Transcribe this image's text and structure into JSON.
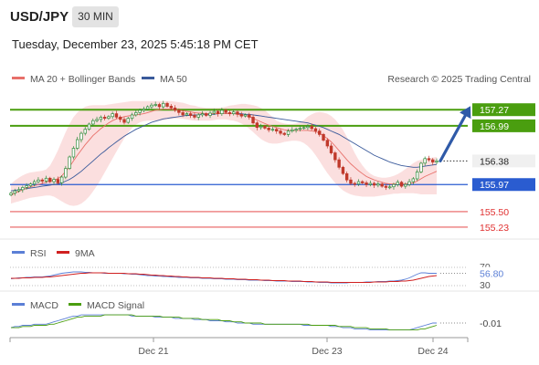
{
  "header": {
    "symbol": "USD/JPY",
    "timeframe": "30 MIN",
    "datetime": "Tuesday, December 23, 2025 5:45:18 PM CET"
  },
  "legend": {
    "ma20": "MA 20 + Bollinger Bands",
    "ma50": "MA 50",
    "credit": "Research © 2025 Trading Central"
  },
  "colors": {
    "ma20": "#e8706a",
    "ma50": "#3a5a9b",
    "resistance": "#4a9e0f",
    "support": "#2a5cd0",
    "target": "#e03030",
    "bollinger_fill": "#fbdcdc",
    "candle_up": "#2e8b3a",
    "candle_down": "#c0392b",
    "arrow": "#2f5aa8",
    "rsi": "#5b7fd6",
    "rsi_ma": "#d02020",
    "macd": "#5b7fd6",
    "macd_signal": "#4a9e0f"
  },
  "chart_data": [
    {
      "type": "candlestick",
      "ylim": [
        155.15,
        157.4
      ],
      "x_ticks": [
        "Dec 21",
        "Dec 23",
        "Dec 24"
      ],
      "last_price": 156.38,
      "levels": [
        {
          "value": 157.27,
          "label": "157.27",
          "kind": "resistance"
        },
        {
          "value": 156.99,
          "label": "156.99",
          "kind": "resistance"
        },
        {
          "value": 155.97,
          "label": "155.97",
          "kind": "support"
        },
        {
          "value": 155.5,
          "label": "155.50",
          "kind": "target"
        },
        {
          "value": 155.23,
          "label": "155.23",
          "kind": "target"
        }
      ],
      "close": [
        155.82,
        155.86,
        155.88,
        155.92,
        155.95,
        155.98,
        156.02,
        156.05,
        156.03,
        156.08,
        156.02,
        156.06,
        156.0,
        156.1,
        156.25,
        156.45,
        156.6,
        156.75,
        156.86,
        156.93,
        157.02,
        157.08,
        157.1,
        157.14,
        157.12,
        157.15,
        157.2,
        157.14,
        157.1,
        157.05,
        157.12,
        157.18,
        157.22,
        157.26,
        157.28,
        157.32,
        157.35,
        157.36,
        157.32,
        157.38,
        157.33,
        157.3,
        157.26,
        157.22,
        157.18,
        157.2,
        157.17,
        157.14,
        157.18,
        157.2,
        157.17,
        157.21,
        157.24,
        157.2,
        157.26,
        157.22,
        157.2,
        157.23,
        157.19,
        157.16,
        157.18,
        157.14,
        157.04,
        156.96,
        156.98,
        156.95,
        156.92,
        156.93,
        156.9,
        156.86,
        156.84,
        156.9,
        156.92,
        156.93,
        156.95,
        156.96,
        156.98,
        156.94,
        156.9,
        156.84,
        156.74,
        156.64,
        156.52,
        156.4,
        156.27,
        156.16,
        156.05,
        155.99,
        155.98,
        156.02,
        156.0,
        155.97,
        155.99,
        155.96,
        155.98,
        155.94,
        155.92,
        155.93,
        155.97,
        156.01,
        155.94,
        155.97,
        156.02,
        156.07,
        156.19,
        156.34,
        156.42,
        156.4,
        156.36,
        156.38
      ],
      "ma20": [
        155.78,
        155.82,
        155.85,
        155.88,
        155.91,
        155.93,
        155.95,
        155.97,
        155.99,
        156.01,
        156.03,
        156.05,
        156.07,
        156.12,
        156.2,
        156.28,
        156.38,
        156.48,
        156.57,
        156.66,
        156.74,
        156.82,
        156.88,
        156.94,
        156.99,
        157.04,
        157.08,
        157.11,
        157.13,
        157.15,
        157.16,
        157.17,
        157.18,
        157.19,
        157.2,
        157.22,
        157.24,
        157.26,
        157.27,
        157.28,
        157.28,
        157.28,
        157.27,
        157.26,
        157.25,
        157.24,
        157.23,
        157.22,
        157.21,
        157.21,
        157.2,
        157.2,
        157.2,
        157.2,
        157.2,
        157.2,
        157.2,
        157.2,
        157.19,
        157.18,
        157.17,
        157.15,
        157.12,
        157.09,
        157.06,
        157.03,
        157.0,
        156.98,
        156.96,
        156.94,
        156.92,
        156.91,
        156.91,
        156.91,
        156.91,
        156.91,
        156.91,
        156.9,
        156.89,
        156.86,
        156.82,
        156.77,
        156.71,
        156.64,
        156.56,
        156.48,
        156.4,
        156.33,
        156.27,
        156.21,
        156.16,
        156.11,
        156.08,
        156.05,
        156.03,
        156.01,
        155.99,
        155.98,
        155.98,
        155.98,
        155.98,
        155.98,
        155.99,
        156.0,
        156.03,
        156.07,
        156.11,
        156.14,
        156.17,
        156.2
      ],
      "ma50": [
        155.86,
        155.87,
        155.88,
        155.89,
        155.9,
        155.91,
        155.92,
        155.93,
        155.94,
        155.95,
        155.96,
        155.97,
        155.98,
        156.0,
        156.03,
        156.06,
        156.1,
        156.15,
        156.2,
        156.26,
        156.32,
        156.38,
        156.44,
        156.5,
        156.55,
        156.61,
        156.66,
        156.71,
        156.76,
        156.81,
        156.85,
        156.89,
        156.93,
        156.96,
        156.99,
        157.02,
        157.05,
        157.07,
        157.09,
        157.11,
        157.12,
        157.13,
        157.14,
        157.15,
        157.16,
        157.17,
        157.17,
        157.18,
        157.18,
        157.19,
        157.19,
        157.19,
        157.19,
        157.2,
        157.2,
        157.2,
        157.2,
        157.2,
        157.2,
        157.2,
        157.19,
        157.19,
        157.18,
        157.17,
        157.16,
        157.15,
        157.14,
        157.13,
        157.12,
        157.11,
        157.1,
        157.09,
        157.08,
        157.07,
        157.06,
        157.05,
        157.04,
        157.02,
        157.0,
        156.98,
        156.96,
        156.93,
        156.9,
        156.87,
        156.84,
        156.8,
        156.76,
        156.72,
        156.68,
        156.64,
        156.6,
        156.56,
        156.52,
        156.48,
        156.45,
        156.42,
        156.39,
        156.36,
        156.34,
        156.32,
        156.3,
        156.29,
        156.28,
        156.27,
        156.27,
        156.28,
        156.29,
        156.3,
        156.31,
        156.32
      ],
      "bb_upper": [
        155.98,
        156.04,
        156.09,
        156.13,
        156.16,
        156.18,
        156.19,
        156.2,
        156.21,
        156.23,
        156.3,
        156.42,
        156.56,
        156.72,
        156.88,
        157.02,
        157.14,
        157.22,
        157.28,
        157.32,
        157.34,
        157.35,
        157.35,
        157.35,
        157.35,
        157.36,
        157.37,
        157.38,
        157.39,
        157.4,
        157.41,
        157.42,
        157.42,
        157.42,
        157.42,
        157.42,
        157.42,
        157.42,
        157.42,
        157.42,
        157.42,
        157.42,
        157.41,
        157.4,
        157.39,
        157.37,
        157.35,
        157.34,
        157.32,
        157.31,
        157.3,
        157.3,
        157.3,
        157.3,
        157.31,
        157.32,
        157.34,
        157.35,
        157.36,
        157.37,
        157.37,
        157.36,
        157.35,
        157.33,
        157.3,
        157.26,
        157.2,
        157.14,
        157.08,
        157.05,
        157.03,
        157.02,
        157.02,
        157.03,
        157.05,
        157.09,
        157.15,
        157.19,
        157.22,
        157.23,
        157.22,
        157.2,
        157.16,
        157.1,
        157.02,
        156.92,
        156.8,
        156.66,
        156.52,
        156.4,
        156.3,
        156.22,
        156.16,
        156.12,
        156.1,
        156.09,
        156.09,
        156.1,
        156.12,
        156.15,
        156.19,
        156.24,
        156.29,
        156.34,
        156.38,
        156.4,
        156.42,
        156.43,
        156.44,
        156.45
      ],
      "bb_lower": [
        155.64,
        155.66,
        155.68,
        155.7,
        155.72,
        155.74,
        155.75,
        155.76,
        155.77,
        155.78,
        155.78,
        155.76,
        155.72,
        155.68,
        155.64,
        155.61,
        155.6,
        155.61,
        155.64,
        155.69,
        155.76,
        155.85,
        155.95,
        156.06,
        156.18,
        156.3,
        156.42,
        156.54,
        156.66,
        156.77,
        156.87,
        156.95,
        157.01,
        157.05,
        157.07,
        157.08,
        157.08,
        157.08,
        157.08,
        157.09,
        157.1,
        157.11,
        157.12,
        157.12,
        157.11,
        157.1,
        157.09,
        157.08,
        157.08,
        157.08,
        157.08,
        157.08,
        157.09,
        157.1,
        157.1,
        157.1,
        157.09,
        157.08,
        157.06,
        157.03,
        156.99,
        156.94,
        156.88,
        156.82,
        156.76,
        156.72,
        156.69,
        156.68,
        156.68,
        156.69,
        156.71,
        156.72,
        156.73,
        156.73,
        156.72,
        156.69,
        156.64,
        156.57,
        156.48,
        156.38,
        156.27,
        156.17,
        156.08,
        156.0,
        155.93,
        155.87,
        155.83,
        155.8,
        155.78,
        155.77,
        155.76,
        155.76,
        155.76,
        155.76,
        155.77,
        155.78,
        155.79,
        155.8,
        155.81,
        155.81,
        155.82,
        155.82,
        155.82,
        155.82,
        155.81,
        155.8,
        155.8,
        155.8,
        155.8,
        155.8
      ]
    },
    {
      "type": "line",
      "name_series": "RSI",
      "value_label": "56.80",
      "value": 56.8,
      "levels": [
        70,
        30
      ],
      "level_labels": [
        "70",
        "30"
      ],
      "ylim": [
        20,
        80
      ],
      "series": [
        {
          "name": "RSI",
          "values": [
            45,
            46,
            47,
            47,
            48,
            48,
            49,
            49,
            49,
            50,
            51,
            53,
            55,
            57,
            58,
            59,
            60,
            60,
            60,
            59,
            59,
            58,
            58,
            58,
            57,
            57,
            57,
            57,
            57,
            56,
            56,
            55,
            55,
            54,
            53,
            52,
            52,
            51,
            51,
            50,
            50,
            49,
            49,
            48,
            48,
            48,
            47,
            47,
            47,
            46,
            46,
            46,
            45,
            45,
            45,
            44,
            44,
            44,
            43,
            43,
            43,
            42,
            42,
            42,
            42,
            41,
            41,
            41,
            40,
            40,
            40,
            40,
            39,
            39,
            39,
            39,
            38,
            38,
            38,
            37,
            37,
            37,
            36,
            36,
            36,
            36,
            36,
            37,
            37,
            37,
            37,
            38,
            38,
            38,
            39,
            39,
            39,
            40,
            40,
            41,
            42,
            44,
            47,
            51,
            55,
            58,
            58,
            57,
            57,
            57
          ]
        },
        {
          "name": "9MA",
          "values": [
            46,
            46,
            46,
            47,
            47,
            47,
            48,
            48,
            48,
            49,
            49,
            50,
            51,
            52,
            53,
            54,
            55,
            56,
            57,
            57,
            58,
            58,
            58,
            58,
            58,
            57,
            57,
            57,
            57,
            57,
            56,
            56,
            56,
            55,
            55,
            54,
            53,
            53,
            52,
            52,
            51,
            51,
            50,
            50,
            49,
            49,
            48,
            48,
            48,
            47,
            47,
            47,
            46,
            46,
            46,
            45,
            45,
            45,
            44,
            44,
            44,
            43,
            43,
            43,
            42,
            42,
            42,
            41,
            41,
            41,
            41,
            40,
            40,
            40,
            40,
            39,
            39,
            39,
            38,
            38,
            38,
            38,
            37,
            37,
            37,
            37,
            37,
            37,
            37,
            37,
            37,
            37,
            37,
            38,
            38,
            38,
            38,
            39,
            39,
            39,
            40,
            40,
            41,
            42,
            44,
            46,
            48,
            50,
            51,
            52
          ]
        }
      ]
    },
    {
      "type": "line",
      "value_label": "-0.01",
      "value": -0.01,
      "ylim": [
        -0.12,
        0.1
      ],
      "series": [
        {
          "name": "MACD",
          "values": [
            -0.05,
            -0.04,
            -0.04,
            -0.03,
            -0.03,
            -0.03,
            -0.02,
            -0.02,
            -0.02,
            -0.02,
            -0.01,
            0.0,
            0.01,
            0.02,
            0.03,
            0.04,
            0.05,
            0.05,
            0.06,
            0.06,
            0.06,
            0.06,
            0.06,
            0.06,
            0.06,
            0.06,
            0.06,
            0.06,
            0.06,
            0.06,
            0.06,
            0.05,
            0.05,
            0.05,
            0.05,
            0.05,
            0.05,
            0.04,
            0.04,
            0.04,
            0.04,
            0.04,
            0.03,
            0.03,
            0.03,
            0.03,
            0.03,
            0.02,
            0.02,
            0.02,
            0.02,
            0.01,
            0.01,
            0.01,
            0.01,
            0.0,
            0.0,
            0.0,
            -0.01,
            -0.01,
            -0.01,
            -0.01,
            -0.02,
            -0.02,
            -0.02,
            -0.02,
            -0.02,
            -0.02,
            -0.02,
            -0.02,
            -0.02,
            -0.02,
            -0.02,
            -0.02,
            -0.02,
            -0.03,
            -0.03,
            -0.03,
            -0.03,
            -0.03,
            -0.03,
            -0.03,
            -0.04,
            -0.04,
            -0.04,
            -0.05,
            -0.05,
            -0.05,
            -0.06,
            -0.06,
            -0.06,
            -0.06,
            -0.07,
            -0.07,
            -0.07,
            -0.07,
            -0.07,
            -0.07,
            -0.07,
            -0.07,
            -0.07,
            -0.07,
            -0.07,
            -0.06,
            -0.05,
            -0.04,
            -0.03,
            -0.02,
            -0.01,
            -0.01
          ]
        },
        {
          "name": "MACD Signal",
          "values": [
            -0.05,
            -0.05,
            -0.05,
            -0.04,
            -0.04,
            -0.04,
            -0.03,
            -0.03,
            -0.03,
            -0.03,
            -0.02,
            -0.02,
            -0.01,
            0.0,
            0.01,
            0.02,
            0.03,
            0.04,
            0.04,
            0.05,
            0.05,
            0.05,
            0.05,
            0.05,
            0.06,
            0.06,
            0.06,
            0.06,
            0.06,
            0.06,
            0.06,
            0.06,
            0.05,
            0.05,
            0.05,
            0.05,
            0.05,
            0.05,
            0.05,
            0.04,
            0.04,
            0.04,
            0.04,
            0.04,
            0.03,
            0.03,
            0.03,
            0.03,
            0.03,
            0.02,
            0.02,
            0.02,
            0.02,
            0.02,
            0.01,
            0.01,
            0.01,
            0.0,
            0.0,
            0.0,
            -0.01,
            -0.01,
            -0.01,
            -0.01,
            -0.01,
            -0.02,
            -0.02,
            -0.02,
            -0.02,
            -0.02,
            -0.02,
            -0.02,
            -0.02,
            -0.02,
            -0.02,
            -0.02,
            -0.02,
            -0.03,
            -0.03,
            -0.03,
            -0.03,
            -0.03,
            -0.03,
            -0.03,
            -0.04,
            -0.04,
            -0.04,
            -0.04,
            -0.05,
            -0.05,
            -0.05,
            -0.05,
            -0.06,
            -0.06,
            -0.06,
            -0.06,
            -0.06,
            -0.07,
            -0.07,
            -0.07,
            -0.07,
            -0.07,
            -0.07,
            -0.07,
            -0.07,
            -0.06,
            -0.06,
            -0.05,
            -0.04,
            -0.03
          ]
        }
      ]
    }
  ]
}
